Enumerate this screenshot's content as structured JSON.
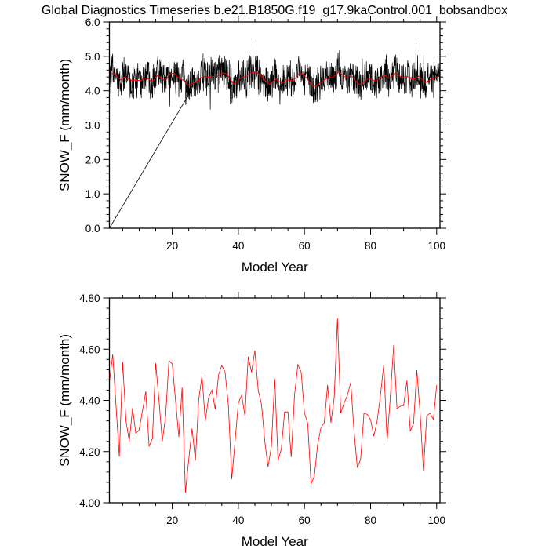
{
  "title": "Global Diagnostics Timeseries b.e21.B1850G.f19_g17.9kaControl.001_bobsandbox",
  "chart_data": [
    {
      "type": "line",
      "xlabel": "Model Year",
      "ylabel": "SNOW_F (mm/month)",
      "xlim": [
        1,
        101
      ],
      "ylim": [
        0,
        6
      ],
      "xticks": [
        20,
        40,
        60,
        80,
        100
      ],
      "xtick_labels": [
        "20",
        "40",
        "60",
        "80",
        "100"
      ],
      "xminor_step": 5,
      "yticks": [
        0,
        1,
        2,
        3,
        4,
        5,
        6
      ],
      "ytick_labels": [
        "0.0",
        "1.0",
        "2.0",
        "3.0",
        "4.0",
        "5.0",
        "6.0"
      ],
      "yminor_step": 0.2,
      "grid": false,
      "series": [
        {
          "color": "#000000",
          "resolution": "monthly",
          "approx_range": [
            3.2,
            5.45
          ]
        },
        {
          "color": "#ff0000",
          "resolution": "running mean"
        }
      ],
      "connector_segment": [
        [
          1,
          0.0
        ],
        [
          26,
          4.05
        ]
      ]
    },
    {
      "type": "line",
      "xlabel": "Model Year",
      "ylabel": "SNOW_F (mm/month)",
      "xlim": [
        1,
        101
      ],
      "ylim": [
        4.0,
        4.8
      ],
      "xticks": [
        20,
        40,
        60,
        80,
        100
      ],
      "xtick_labels": [
        "20",
        "40",
        "60",
        "80",
        "100"
      ],
      "xminor_step": 5,
      "yticks": [
        4.0,
        4.2,
        4.4,
        4.6,
        4.8
      ],
      "ytick_labels": [
        "4.00",
        "4.20",
        "4.40",
        "4.60",
        "4.80"
      ],
      "yminor_step": 0.04,
      "grid": false,
      "series": [
        {
          "color": "#ff0000",
          "x_start": 1,
          "values": [
            4.47,
            4.58,
            4.38,
            4.18,
            4.55,
            4.32,
            4.24,
            4.37,
            4.27,
            4.285,
            4.36,
            4.435,
            4.22,
            4.25,
            4.545,
            4.4,
            4.24,
            4.34,
            4.555,
            4.543,
            4.4,
            4.257,
            4.45,
            4.04,
            4.17,
            4.29,
            4.165,
            4.4,
            4.496,
            4.32,
            4.41,
            4.44,
            4.365,
            4.5,
            4.536,
            4.51,
            4.38,
            4.092,
            4.24,
            4.39,
            4.42,
            4.34,
            4.57,
            4.51,
            4.595,
            4.44,
            4.385,
            4.24,
            4.14,
            4.22,
            4.484,
            4.165,
            4.21,
            4.355,
            4.355,
            4.178,
            4.42,
            4.54,
            4.51,
            4.35,
            4.31,
            4.074,
            4.104,
            4.227,
            4.294,
            4.313,
            4.46,
            4.313,
            4.41,
            4.72,
            4.35,
            4.39,
            4.42,
            4.47,
            4.28,
            4.137,
            4.17,
            4.35,
            4.345,
            4.325,
            4.26,
            4.32,
            4.42,
            4.54,
            4.24,
            4.42,
            4.616,
            4.368,
            4.377,
            4.38,
            4.478,
            4.28,
            4.31,
            4.518,
            4.35,
            4.126,
            4.34,
            4.35,
            4.325,
            4.46
          ]
        }
      ]
    }
  ]
}
